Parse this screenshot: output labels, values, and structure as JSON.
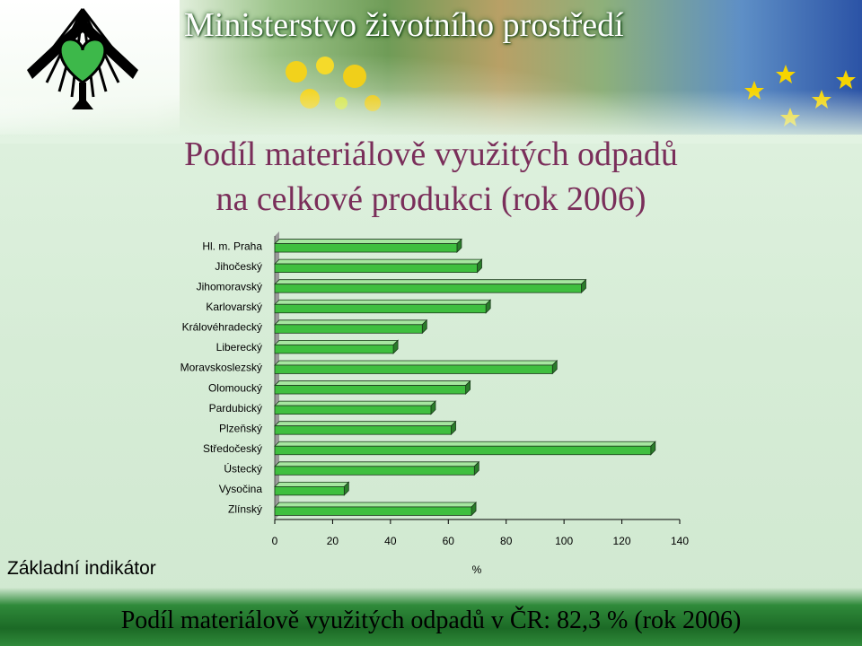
{
  "header": {
    "ministry_name": "Ministerstvo životního prostředí"
  },
  "title": {
    "line1": "Podíl materiálově využitých odpadů",
    "line2": "na celkové produkci (rok 2006)"
  },
  "basic_indicator": "Základní indikátor",
  "footer": "Podíl materiálově využitých odpadů v ČR: 82,3 % (rok 2006)",
  "colors": {
    "bar_face": "#3fbf3f",
    "bar_top": "#a6e6a0",
    "bar_side": "#2a7d2a",
    "title": "#7a2e5a"
  },
  "chart_data": {
    "type": "bar",
    "orientation": "horizontal",
    "style": "3d",
    "categories": [
      "Hl. m. Praha",
      "Jihočeský",
      "Jihomoravský",
      "Karlovarský",
      "Královéhradecký",
      "Liberecký",
      "Moravskoslezský",
      "Olomoucký",
      "Pardubický",
      "Plzeňský",
      "Středočeský",
      "Ústecký",
      "Vysočina",
      "Zlínský"
    ],
    "values": [
      63,
      70,
      106,
      73,
      51,
      41,
      96,
      66,
      54,
      61,
      130,
      69,
      24,
      68
    ],
    "xlabel": "%",
    "xlim": [
      0,
      140
    ],
    "xticks": [
      0,
      20,
      40,
      60,
      80,
      100,
      120,
      140
    ],
    "grid": false,
    "legend": "none"
  }
}
